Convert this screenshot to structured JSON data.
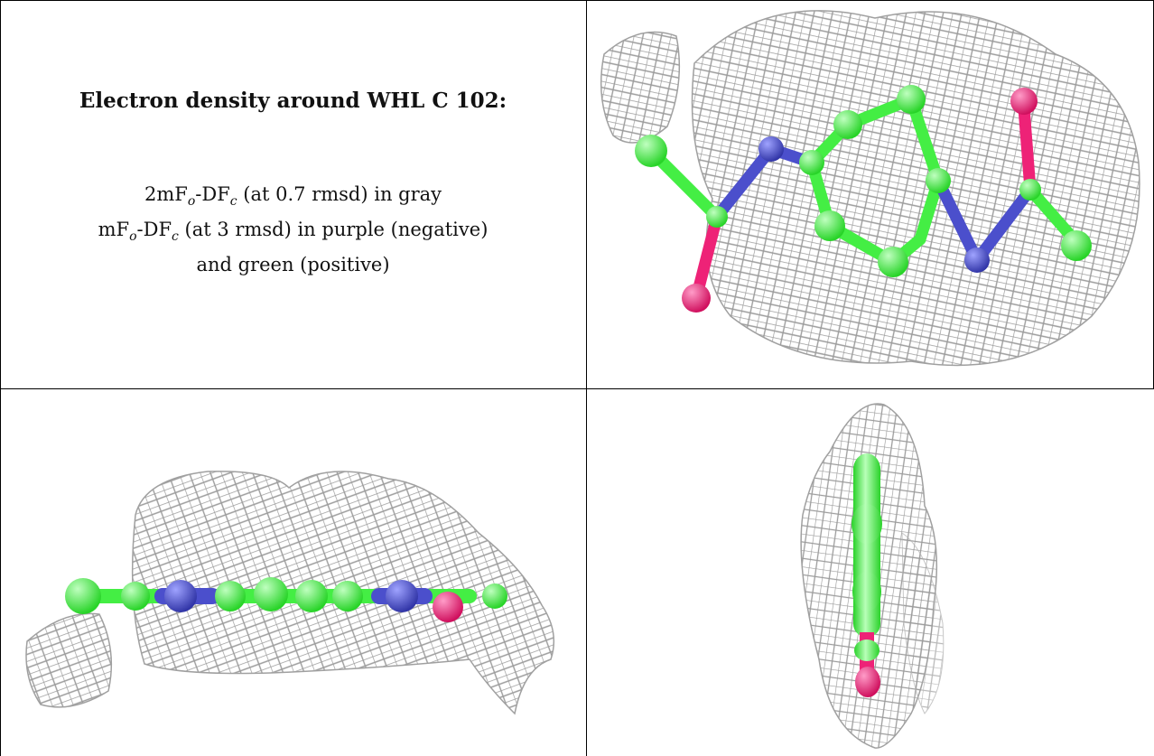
{
  "panel_text": {
    "title": "Electron density around WHL C 102:",
    "line1_prefix": "2mF",
    "line1_sub_o": "o",
    "line1_mid": "-DF",
    "line1_sub_c": "c",
    "line1_suffix": " (at 0.7 rmsd) in gray",
    "line2_prefix": "mF",
    "line2_sub_o": "o",
    "line2_mid": "-DF",
    "line2_sub_c": "c",
    "line2_suffix": " (at 3 rmsd) in purple (negative)",
    "line3": "and green (positive)"
  },
  "colors": {
    "carbon": "#44ee44",
    "nitrogen": "#4b4fcc",
    "oxygen": "#ee2277",
    "mesh": "#9a9a9a",
    "border": "#000000"
  },
  "views": [
    {
      "name": "top-view",
      "atoms": [
        "C",
        "N",
        "C",
        "O",
        "C",
        "C",
        "C",
        "C",
        "C",
        "C",
        "N",
        "C",
        "O",
        "C"
      ]
    },
    {
      "name": "side-view",
      "atoms": [
        "C",
        "C",
        "N",
        "C",
        "C",
        "C",
        "C",
        "N",
        "O",
        "C"
      ]
    },
    {
      "name": "edge-view",
      "atoms": [
        "C",
        "C",
        "C",
        "O"
      ]
    }
  ]
}
